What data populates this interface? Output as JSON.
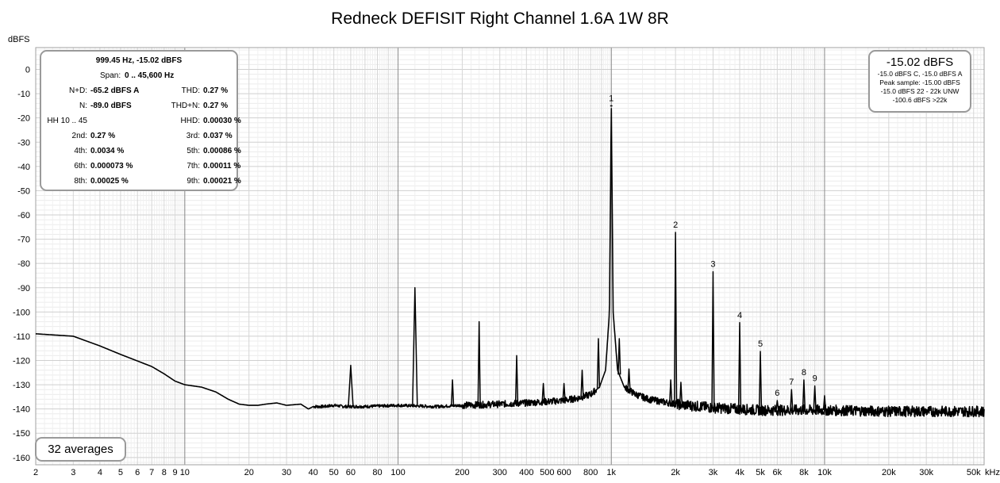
{
  "chart_data": {
    "type": "line",
    "title": "Redneck DEFISIT Right Channel 1.6A 1W 8R",
    "ylabel": "dBFS",
    "xlabel": "",
    "x_unit": "kHz",
    "xscale": "log",
    "xlim": [
      2,
      56000
    ],
    "ylim": [
      -163,
      9
    ],
    "grid": true,
    "y_ticks": [
      0,
      -10,
      -20,
      -30,
      -40,
      -50,
      -60,
      -70,
      -80,
      -90,
      -100,
      -110,
      -120,
      -130,
      -140,
      -150,
      -160
    ],
    "x_ticks": [
      {
        "value": 2,
        "label": "2"
      },
      {
        "value": 3,
        "label": "3"
      },
      {
        "value": 4,
        "label": "4"
      },
      {
        "value": 5,
        "label": "5"
      },
      {
        "value": 6,
        "label": "6"
      },
      {
        "value": 7,
        "label": "7"
      },
      {
        "value": 8,
        "label": "8"
      },
      {
        "value": 9,
        "label": "9"
      },
      {
        "value": 10,
        "label": "10"
      },
      {
        "value": 20,
        "label": "20"
      },
      {
        "value": 30,
        "label": "30"
      },
      {
        "value": 40,
        "label": "40"
      },
      {
        "value": 50,
        "label": "50"
      },
      {
        "value": 60,
        "label": "60"
      },
      {
        "value": 80,
        "label": "80"
      },
      {
        "value": 100,
        "label": "100"
      },
      {
        "value": 200,
        "label": "200"
      },
      {
        "value": 300,
        "label": "300"
      },
      {
        "value": 400,
        "label": "400"
      },
      {
        "value": 500,
        "label": "500"
      },
      {
        "value": 600,
        "label": "600"
      },
      {
        "value": 800,
        "label": "800"
      },
      {
        "value": 1000,
        "label": "1k"
      },
      {
        "value": 2000,
        "label": "2k"
      },
      {
        "value": 3000,
        "label": "3k"
      },
      {
        "value": 4000,
        "label": "4k"
      },
      {
        "value": 5000,
        "label": "5k"
      },
      {
        "value": 6000,
        "label": "6k"
      },
      {
        "value": 8000,
        "label": "8k"
      },
      {
        "value": 10000,
        "label": "10k"
      },
      {
        "value": 20000,
        "label": "20k"
      },
      {
        "value": 30000,
        "label": "30k"
      },
      {
        "value": 50000,
        "label": "50k"
      }
    ],
    "noise_floor": [
      [
        2,
        -109
      ],
      [
        3,
        -110
      ],
      [
        4,
        -114
      ],
      [
        5,
        -117.5
      ],
      [
        7,
        -122.5
      ],
      [
        8,
        -125.5
      ],
      [
        9,
        -128.5
      ],
      [
        10,
        -130
      ],
      [
        12,
        -131
      ],
      [
        14,
        -133
      ],
      [
        16,
        -136
      ],
      [
        18,
        -138
      ],
      [
        20,
        -138.5
      ],
      [
        22,
        -138.5
      ],
      [
        24,
        -138
      ],
      [
        27,
        -137.5
      ],
      [
        30,
        -138.5
      ],
      [
        35,
        -138
      ],
      [
        38,
        -140
      ],
      [
        40,
        -139
      ],
      [
        45,
        -139
      ],
      [
        50,
        -138.5
      ],
      [
        56,
        -139
      ],
      [
        70,
        -139
      ],
      [
        100,
        -138.5
      ],
      [
        150,
        -139
      ],
      [
        200,
        -138.5
      ],
      [
        300,
        -138
      ],
      [
        400,
        -137.5
      ],
      [
        500,
        -137
      ],
      [
        600,
        -136.5
      ],
      [
        700,
        -135.5
      ],
      [
        800,
        -134
      ],
      [
        880,
        -131
      ],
      [
        940,
        -124
      ],
      [
        980,
        -100
      ],
      [
        1000,
        -15.02
      ],
      [
        1020,
        -100
      ],
      [
        1070,
        -124
      ],
      [
        1150,
        -131
      ],
      [
        1300,
        -134
      ],
      [
        1500,
        -136
      ],
      [
        2000,
        -138
      ],
      [
        3000,
        -139.5
      ],
      [
        5000,
        -140.5
      ],
      [
        10000,
        -140.5
      ],
      [
        20000,
        -141
      ],
      [
        54000,
        -141
      ]
    ],
    "peaks": [
      {
        "f": 60,
        "db": -122
      },
      {
        "f": 120,
        "db": -90
      },
      {
        "f": 180,
        "db": -128
      },
      {
        "f": 240,
        "db": -104
      },
      {
        "f": 360,
        "db": -118
      },
      {
        "f": 480,
        "db": -129.5
      },
      {
        "f": 600,
        "db": -129.5
      },
      {
        "f": 730,
        "db": -124
      },
      {
        "f": 870,
        "db": -111
      },
      {
        "f": 1000,
        "db": -15.02
      },
      {
        "f": 1090,
        "db": -111
      },
      {
        "f": 1210,
        "db": -123.5
      },
      {
        "f": 1900,
        "db": -128
      },
      {
        "f": 2000,
        "db": -67.2
      },
      {
        "f": 2120,
        "db": -129
      },
      {
        "f": 3000,
        "db": -83.4
      },
      {
        "f": 4000,
        "db": -104.4
      },
      {
        "f": 5000,
        "db": -116.3
      },
      {
        "f": 6000,
        "db": -136.5
      },
      {
        "f": 7000,
        "db": -132
      },
      {
        "f": 8000,
        "db": -128
      },
      {
        "f": 9000,
        "db": -130.5
      },
      {
        "f": 10000,
        "db": -134.5
      }
    ],
    "harmonic_labels": [
      {
        "label": "1",
        "f": 1000,
        "db": -15.02
      },
      {
        "label": "2",
        "f": 2000,
        "db": -67.2
      },
      {
        "label": "3",
        "f": 3000,
        "db": -83.4
      },
      {
        "label": "4",
        "f": 4000,
        "db": -104.4
      },
      {
        "label": "5",
        "f": 5000,
        "db": -116.3
      },
      {
        "label": "6",
        "f": 6000,
        "db": -136.5
      },
      {
        "label": "7",
        "f": 7000,
        "db": -132
      },
      {
        "label": "8",
        "f": 8000,
        "db": -128
      },
      {
        "label": "9",
        "f": 9000,
        "db": -130.5
      }
    ]
  },
  "stats_panel": {
    "header": "999.45 Hz, -15.02 dBFS",
    "span_label": "Span:",
    "span_value": "0 .. 45,600 Hz",
    "rows": [
      {
        "l_label": "N+D:",
        "l_value": "-65.2 dBFS A",
        "r_label": "THD:",
        "r_value": "0.27 %"
      },
      {
        "l_label": "N:",
        "l_value": "-89.0 dBFS",
        "r_label": "THD+N:",
        "r_value": "0.27 %"
      },
      {
        "l_label": "HH 10 .. 45",
        "l_value": "",
        "r_label": "HHD:",
        "r_value": "0.00030 %"
      },
      {
        "l_label": "2nd:",
        "l_value": "0.27 %",
        "r_label": "3rd:",
        "r_value": "0.037 %"
      },
      {
        "l_label": "4th:",
        "l_value": "0.0034 %",
        "r_label": "5th:",
        "r_value": "0.00086 %"
      },
      {
        "l_label": "6th:",
        "l_value": "0.000073 %",
        "r_label": "7th:",
        "r_value": "0.00011 %"
      },
      {
        "l_label": "8th:",
        "l_value": "0.00025 %",
        "r_label": "9th:",
        "r_value": "0.00021 %"
      }
    ]
  },
  "level_panel": {
    "main": "-15.02 dBFS",
    "line1": "-15.0 dBFS C, -15.0 dBFS A",
    "line2": "Peak sample: -15.00 dBFS",
    "line3": "-15.0 dBFS 22 - 22k UNW",
    "line4": "-100.6 dBFS >22k"
  },
  "averages_label": "32 averages"
}
